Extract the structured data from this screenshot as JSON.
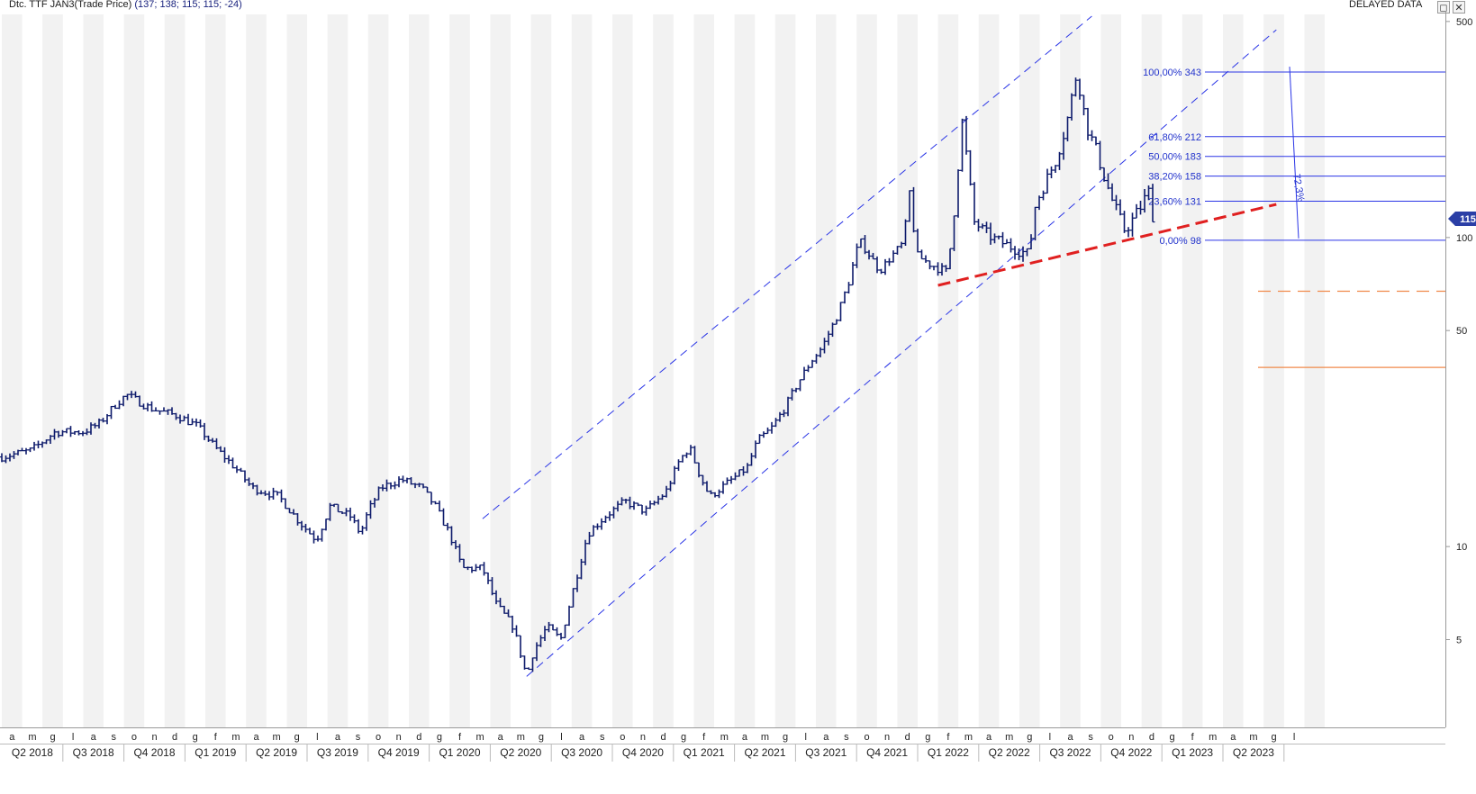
{
  "header": {
    "instrument": "Dtc. TTF JAN3(Trade Price)",
    "values": "(137; 138; 115; 115; -24)",
    "status": "DELAYED DATA",
    "max_icon": "maximize-icon",
    "close_icon": "close-icon"
  },
  "chart_data": {
    "type": "ohlc",
    "y_scale": "log",
    "ylim": [
      2.6,
      520
    ],
    "y_ticks": [
      5,
      10,
      50,
      100,
      500
    ],
    "last_price_badge": "115",
    "month_labels": [
      "a",
      "m",
      "g",
      "l",
      "a",
      "s",
      "o",
      "n",
      "d",
      "g",
      "f",
      "m",
      "a",
      "m",
      "g",
      "l",
      "a",
      "s",
      "o",
      "n",
      "d",
      "g",
      "f",
      "m",
      "a",
      "m",
      "g",
      "l",
      "a",
      "s",
      "o",
      "n",
      "d",
      "g",
      "f",
      "m",
      "a",
      "m",
      "g",
      "l",
      "a",
      "s",
      "o",
      "n",
      "d",
      "g",
      "f",
      "m",
      "a",
      "m",
      "g",
      "l",
      "a",
      "s",
      "o",
      "n",
      "d",
      "g",
      "f",
      "m",
      "a",
      "m",
      "g",
      "l"
    ],
    "quarter_labels": [
      "Q2 2018",
      "Q3 2018",
      "Q4 2018",
      "Q1 2019",
      "Q2 2019",
      "Q3 2019",
      "Q4 2019",
      "Q1 2020",
      "Q2 2020",
      "Q3 2020",
      "Q4 2020",
      "Q1 2021",
      "Q2 2021",
      "Q3 2021",
      "Q4 2021",
      "Q1 2022",
      "Q2 2022",
      "Q3 2022",
      "Q4 2022",
      "Q1 2023",
      "Q2 2023"
    ],
    "price_path": [
      [
        "2018-04-01",
        19.5
      ],
      [
        "2018-05-15",
        20.5
      ],
      [
        "2018-06-20",
        23.5
      ],
      [
        "2018-08-01",
        23.5
      ],
      [
        "2018-08-25",
        25
      ],
      [
        "2018-09-20",
        29
      ],
      [
        "2018-10-05",
        31
      ],
      [
        "2018-11-10",
        28
      ],
      [
        "2018-12-20",
        26.5
      ],
      [
        "2019-01-20",
        24.5
      ],
      [
        "2019-02-15",
        21
      ],
      [
        "2019-03-15",
        18
      ],
      [
        "2019-04-10",
        15.5
      ],
      [
        "2019-05-20",
        14.5
      ],
      [
        "2019-06-20",
        12
      ],
      [
        "2019-07-15",
        10.5
      ],
      [
        "2019-08-05",
        13.5
      ],
      [
        "2019-09-05",
        12.5
      ],
      [
        "2019-09-20",
        11
      ],
      [
        "2019-10-01",
        13
      ],
      [
        "2019-10-20",
        15.5
      ],
      [
        "2019-11-20",
        16.5
      ],
      [
        "2019-12-20",
        15.5
      ],
      [
        "2020-01-10",
        13.5
      ],
      [
        "2020-02-01",
        11
      ],
      [
        "2020-02-20",
        8.5
      ],
      [
        "2020-03-20",
        8.5
      ],
      [
        "2020-04-10",
        6.5
      ],
      [
        "2020-05-05",
        5.5
      ],
      [
        "2020-05-25",
        3.8
      ],
      [
        "2020-06-05",
        4.6
      ],
      [
        "2020-06-25",
        5.5
      ],
      [
        "2020-07-15",
        5.0
      ],
      [
        "2020-08-05",
        7.5
      ],
      [
        "2020-08-25",
        11
      ],
      [
        "2020-09-20",
        12.5
      ],
      [
        "2020-10-20",
        14
      ],
      [
        "2020-11-20",
        13
      ],
      [
        "2020-12-20",
        15
      ],
      [
        "2021-01-10",
        19
      ],
      [
        "2021-01-25",
        21
      ],
      [
        "2021-02-10",
        17
      ],
      [
        "2021-02-25",
        14.5
      ],
      [
        "2021-03-20",
        16
      ],
      [
        "2021-04-20",
        18
      ],
      [
        "2021-05-05",
        22
      ],
      [
        "2021-05-25",
        24
      ],
      [
        "2021-06-15",
        28
      ],
      [
        "2021-07-05",
        34
      ],
      [
        "2021-07-25",
        40
      ],
      [
        "2021-08-10",
        44
      ],
      [
        "2021-09-01",
        55
      ],
      [
        "2021-09-20",
        72
      ],
      [
        "2021-10-05",
        98
      ],
      [
        "2021-10-20",
        88
      ],
      [
        "2021-11-05",
        78
      ],
      [
        "2021-11-25",
        88
      ],
      [
        "2021-12-10",
        96
      ],
      [
        "2021-12-21",
        150
      ],
      [
        "2021-12-28",
        88
      ],
      [
        "2022-01-20",
        82
      ],
      [
        "2022-02-15",
        77
      ],
      [
        "2022-02-25",
        120
      ],
      [
        "2022-03-07",
        240
      ],
      [
        "2022-03-25",
        112
      ],
      [
        "2022-04-20",
        100
      ],
      [
        "2022-05-20",
        93
      ],
      [
        "2022-06-15",
        88
      ],
      [
        "2022-06-25",
        128
      ],
      [
        "2022-07-10",
        152
      ],
      [
        "2022-07-25",
        178
      ],
      [
        "2022-08-10",
        230
      ],
      [
        "2022-08-26",
        343
      ],
      [
        "2022-09-10",
        230
      ],
      [
        "2022-09-25",
        190
      ],
      [
        "2022-10-05",
        160
      ],
      [
        "2022-10-20",
        128
      ],
      [
        "2022-11-05",
        106
      ],
      [
        "2022-11-20",
        115
      ],
      [
        "2022-12-05",
        132
      ],
      [
        "2022-12-12",
        140
      ],
      [
        "2022-12-19",
        115
      ]
    ],
    "channel_upper": [
      [
        "2020-03-20",
        12.3
      ],
      [
        "2022-09-18",
        520
      ]
    ],
    "channel_lower": [
      [
        "2020-05-25",
        3.8
      ],
      [
        "2023-06-20",
        470
      ]
    ],
    "support_line": [
      [
        "2022-02-01",
        70
      ],
      [
        "2023-06-20",
        128
      ]
    ],
    "fibonacci": {
      "levels": [
        {
          "label": "100,00% 343",
          "value": 343
        },
        {
          "label": "61,80% 212",
          "value": 212
        },
        {
          "label": "50,00% 183",
          "value": 183
        },
        {
          "label": "38,20% 158",
          "value": 158
        },
        {
          "label": "23,60% 131",
          "value": 131
        },
        {
          "label": "0,00% 98",
          "value": 98
        }
      ],
      "retracement_label": "72,3%"
    },
    "horizontal_levels": [
      {
        "value": 67,
        "style": "dashed",
        "color": "#f08a4b"
      },
      {
        "value": 38,
        "style": "solid",
        "color": "#f08a4b"
      }
    ],
    "colors": {
      "bars": "#0d1a6b",
      "channel": "#2a35e6",
      "fib": "#2a35e6",
      "support": "#e02020",
      "levels": "#f08a4b",
      "badge": "#2b3fa6",
      "stripe_light": "#f2f2f2"
    }
  }
}
